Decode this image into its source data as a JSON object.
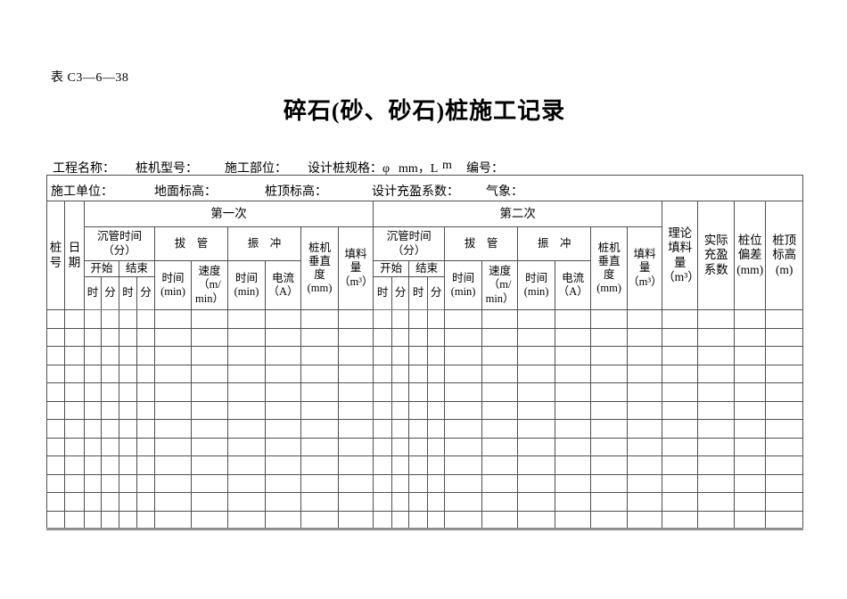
{
  "form_code": "表 C3—6—38",
  "title": "碎石(砂、砂石)桩施工记录",
  "info": {
    "row1": {
      "project_name": "工程名称：",
      "machine_model": "桩机型号：",
      "construction_part": "施工部位：",
      "design_spec": "设计桩规格：φ",
      "spec_unit_mm": "mm，L",
      "spec_unit_m": "m",
      "serial_no": "编号："
    },
    "row2": {
      "construction_unit": "施工单位：",
      "ground_elevation": "地面标高：",
      "pile_top_elevation": "桩顶标高：",
      "design_fill_coefficient": "设计充盈系数：",
      "weather": "气象："
    }
  },
  "table": {
    "pass1": "第一次",
    "pass2": "第二次",
    "pile_no": "桩\n号",
    "date": "日\n期",
    "sink_time": "沉管时间\n（分）",
    "start": "开始",
    "end": "结束",
    "hour": "时",
    "minute": "分",
    "pull_pipe": "拔　管",
    "time_min": "时间\n(min)",
    "speed": "速度\n（m/\nmin）",
    "vibro": "振　冲",
    "current": "电流\n（A）",
    "verticality": "桩机\n垂直\n度\n(mm)",
    "fill_amount": "填料\n量\n（m³）",
    "theoretical_fill": "理论\n填料\n量\n（m³）",
    "actual_coefficient": "实际\n充盈\n系数",
    "position_deviation": "桩位\n偏差\n(mm)",
    "top_elevation": "桩顶\n标高\n(m)",
    "body_row_count": 12,
    "column_count": 26
  }
}
